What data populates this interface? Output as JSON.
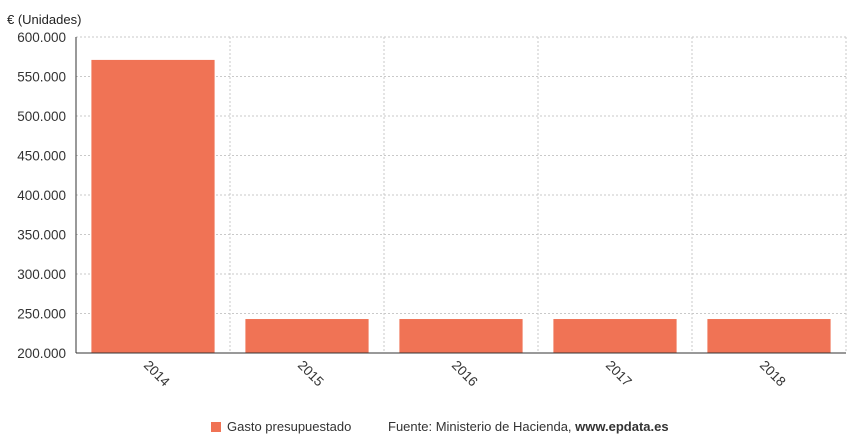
{
  "chart_data": {
    "type": "bar",
    "unit_label": "€ (Unidades)",
    "categories": [
      "2014",
      "2015",
      "2016",
      "2017",
      "2018"
    ],
    "series": [
      {
        "name": "Gasto presupuestado",
        "values": [
          571000,
          243000,
          243000,
          243000,
          243000
        ],
        "color": "#F07355"
      }
    ],
    "ylim": [
      200000,
      600000
    ],
    "yticks": [
      200000,
      250000,
      300000,
      350000,
      400000,
      450000,
      500000,
      550000,
      600000
    ],
    "ytick_labels": [
      "200.000",
      "250.000",
      "300.000",
      "350.000",
      "400.000",
      "450.000",
      "500.000",
      "550.000",
      "600.000"
    ],
    "grid": true,
    "legend_position": "bottom"
  },
  "footer": {
    "legend_label": "Gasto presupuestado",
    "source_text": "Fuente: Ministerio de Hacienda, ",
    "source_link": "www.epdata.es"
  }
}
